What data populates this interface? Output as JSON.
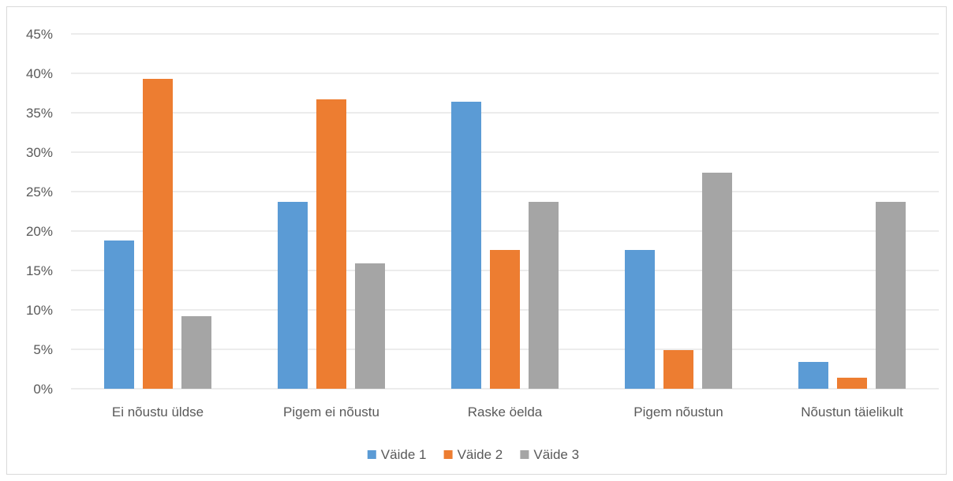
{
  "chart_data": {
    "type": "bar",
    "title": "",
    "xlabel": "",
    "ylabel": "",
    "categories": [
      "Ei nõustu üldse",
      "Pigem ei nõustu",
      "Raske öelda",
      "Pigem nõustun",
      "Nõustun täielikult"
    ],
    "series": [
      {
        "name": "Väide 1",
        "color": "#5b9bd5",
        "values": [
          18.8,
          23.7,
          36.4,
          17.6,
          3.4
        ]
      },
      {
        "name": "Väide 2",
        "color": "#ed7d31",
        "values": [
          39.3,
          36.7,
          17.6,
          4.9,
          1.4
        ]
      },
      {
        "name": "Väide 3",
        "color": "#a5a5a5",
        "values": [
          9.2,
          15.9,
          23.7,
          27.4,
          23.7
        ]
      }
    ],
    "ylim": [
      0,
      45
    ],
    "yticks": [
      0,
      5,
      10,
      15,
      20,
      25,
      30,
      35,
      40,
      45
    ],
    "ytick_labels": [
      "0%",
      "5%",
      "10%",
      "15%",
      "20%",
      "25%",
      "30%",
      "35%",
      "40%",
      "45%"
    ],
    "grid": true,
    "legend_position": "bottom",
    "gridline_color": "#d9d9d9"
  }
}
